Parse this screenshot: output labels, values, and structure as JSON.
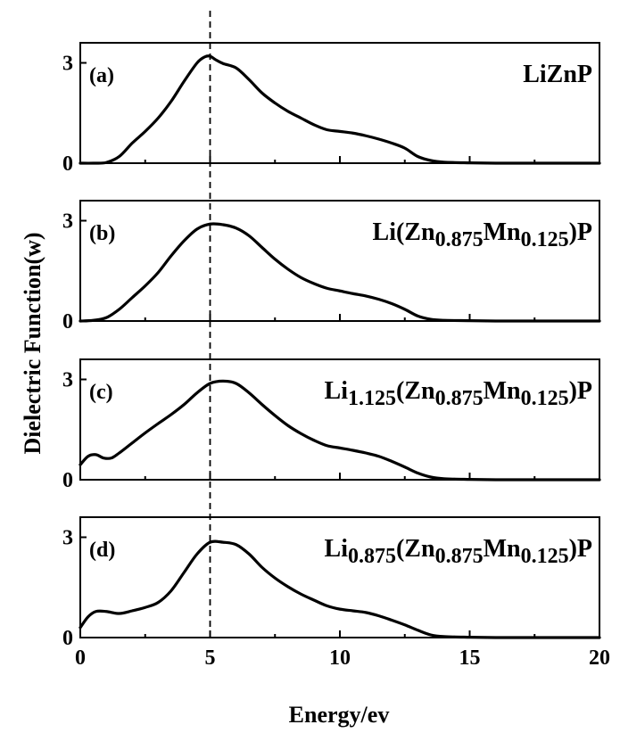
{
  "chart_data": {
    "type": "line",
    "xlabel": "Energy/ev",
    "ylabel": "Dielectric Function(w)",
    "xlim": [
      0,
      20
    ],
    "ylim": [
      0,
      3.6
    ],
    "x_ticks": [
      "0",
      "5",
      "10",
      "15",
      "20"
    ],
    "y_ticks": [
      "0",
      "3"
    ],
    "reference_line": {
      "x": 5.0,
      "style": "dashed"
    },
    "panels": [
      {
        "tag": "(a)",
        "label_parts": [
          {
            "t": "LiZnP",
            "sub": false
          }
        ],
        "x": [
          0,
          0.5,
          1,
          1.5,
          2,
          2.5,
          3,
          3.5,
          4,
          4.5,
          4.8,
          5.0,
          5.2,
          5.5,
          6,
          6.5,
          7,
          7.5,
          8,
          8.5,
          9,
          9.5,
          10,
          10.5,
          11,
          11.5,
          12,
          12.5,
          13,
          13.5,
          14,
          15,
          16,
          17,
          18,
          19,
          20
        ],
        "y": [
          0,
          0,
          0.02,
          0.2,
          0.6,
          0.95,
          1.35,
          1.85,
          2.45,
          3.0,
          3.18,
          3.2,
          3.1,
          2.98,
          2.85,
          2.5,
          2.1,
          1.8,
          1.55,
          1.35,
          1.15,
          1.0,
          0.95,
          0.9,
          0.82,
          0.72,
          0.6,
          0.45,
          0.2,
          0.08,
          0.03,
          0.01,
          0,
          0,
          0,
          0,
          0
        ]
      },
      {
        "tag": "(b)",
        "label_parts": [
          {
            "t": "Li(Zn",
            "sub": false
          },
          {
            "t": "0.875",
            "sub": true
          },
          {
            "t": "Mn",
            "sub": false
          },
          {
            "t": "0.125",
            "sub": true
          },
          {
            "t": ")P",
            "sub": false
          }
        ],
        "x": [
          0,
          0.5,
          1,
          1.5,
          2,
          2.5,
          3,
          3.5,
          4,
          4.5,
          5.0,
          5.5,
          6,
          6.5,
          7,
          7.5,
          8,
          8.5,
          9,
          9.5,
          10,
          10.5,
          11,
          11.5,
          12,
          12.5,
          13,
          13.5,
          14,
          15,
          16,
          17,
          18,
          19,
          20
        ],
        "y": [
          0,
          0.02,
          0.1,
          0.35,
          0.7,
          1.05,
          1.45,
          1.95,
          2.4,
          2.75,
          2.9,
          2.88,
          2.78,
          2.55,
          2.2,
          1.85,
          1.55,
          1.3,
          1.12,
          0.98,
          0.9,
          0.82,
          0.75,
          0.65,
          0.52,
          0.35,
          0.15,
          0.05,
          0.02,
          0.01,
          0,
          0,
          0,
          0,
          0
        ]
      },
      {
        "tag": "(c)",
        "label_parts": [
          {
            "t": "Li",
            "sub": false
          },
          {
            "t": "1.125",
            "sub": true
          },
          {
            "t": "(Zn",
            "sub": false
          },
          {
            "t": "0.875",
            "sub": true
          },
          {
            "t": "Mn",
            "sub": false
          },
          {
            "t": "0.125",
            "sub": true
          },
          {
            "t": ")P",
            "sub": false
          }
        ],
        "x": [
          0,
          0.3,
          0.6,
          0.9,
          1.2,
          1.5,
          2,
          2.5,
          3,
          3.5,
          4,
          4.5,
          5.0,
          5.5,
          6,
          6.5,
          7,
          7.5,
          8,
          8.5,
          9,
          9.5,
          10,
          10.5,
          11,
          11.5,
          12,
          12.5,
          13,
          13.5,
          14,
          15,
          16,
          17,
          18,
          19,
          20
        ],
        "y": [
          0.45,
          0.7,
          0.75,
          0.65,
          0.65,
          0.8,
          1.1,
          1.4,
          1.68,
          1.95,
          2.25,
          2.6,
          2.88,
          2.95,
          2.88,
          2.6,
          2.25,
          1.92,
          1.62,
          1.38,
          1.18,
          1.02,
          0.95,
          0.88,
          0.8,
          0.7,
          0.55,
          0.38,
          0.2,
          0.08,
          0.03,
          0.01,
          0,
          0,
          0,
          0,
          0
        ]
      },
      {
        "tag": "(d)",
        "label_parts": [
          {
            "t": "Li",
            "sub": false
          },
          {
            "t": "0.875",
            "sub": true
          },
          {
            "t": "(Zn",
            "sub": false
          },
          {
            "t": "0.875",
            "sub": true
          },
          {
            "t": "Mn",
            "sub": false
          },
          {
            "t": "0.125",
            "sub": true
          },
          {
            "t": ")P",
            "sub": false
          }
        ],
        "x": [
          0,
          0.3,
          0.6,
          1,
          1.5,
          2,
          2.5,
          3,
          3.5,
          4,
          4.5,
          5.0,
          5.5,
          6,
          6.5,
          7,
          7.5,
          8,
          8.5,
          9,
          9.5,
          10,
          10.5,
          11,
          11.5,
          12,
          12.5,
          13,
          13.5,
          14,
          15,
          16,
          17,
          18,
          19,
          20
        ],
        "y": [
          0.3,
          0.62,
          0.78,
          0.78,
          0.72,
          0.8,
          0.9,
          1.05,
          1.4,
          1.95,
          2.5,
          2.85,
          2.85,
          2.78,
          2.5,
          2.1,
          1.78,
          1.52,
          1.3,
          1.12,
          0.95,
          0.85,
          0.8,
          0.75,
          0.65,
          0.52,
          0.38,
          0.22,
          0.08,
          0.03,
          0.01,
          0,
          0,
          0,
          0,
          0
        ]
      }
    ]
  }
}
